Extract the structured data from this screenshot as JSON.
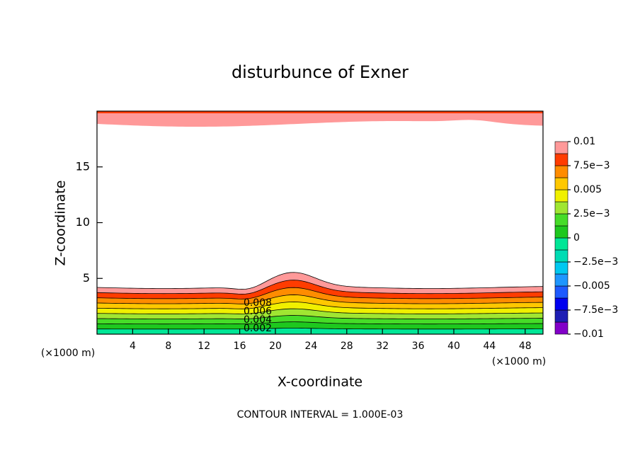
{
  "chart_data": {
    "type": "contour",
    "title": "disturbunce of Exner",
    "x_label": "X-coordinate",
    "y_label": "Z-coordinate",
    "axis_unit": "(×1000 m)",
    "footnote": "CONTOUR INTERVAL = 1.000E-03",
    "xlim": [
      0,
      50
    ],
    "xticks": [
      4,
      8,
      12,
      16,
      20,
      24,
      28,
      32,
      36,
      40,
      44,
      48
    ],
    "ylim": [
      0,
      20
    ],
    "yticks": [
      5,
      10,
      15
    ],
    "contour_labels": [
      "0.008",
      "0.006",
      "0.004",
      "0.002"
    ],
    "colorbar": {
      "lim": [
        -0.01,
        0.01
      ],
      "ticks": [
        {
          "value": -0.01,
          "label": "−0.01"
        },
        {
          "value": -0.0075,
          "label": "−7.5e−3"
        },
        {
          "value": -0.005,
          "label": "−0.005"
        },
        {
          "value": -0.0025,
          "label": "−2.5e−3"
        },
        0,
        {
          "value": 0.0025,
          "label": "2.5e−3"
        },
        0.005,
        {
          "value": 0.0075,
          "label": "7.5e−3"
        },
        0.01
      ],
      "colors": [
        "#8200c8",
        "#1e1eb4",
        "#0000f0",
        "#1e5aff",
        "#1e96ff",
        "#00c8f0",
        "#00dcb4",
        "#00e696",
        "#1ec81e",
        "#46dc28",
        "#a0e632",
        "#f0f000",
        "#ffc800",
        "#ff8c00",
        "#ff3c00",
        "#ff9999"
      ]
    }
  }
}
